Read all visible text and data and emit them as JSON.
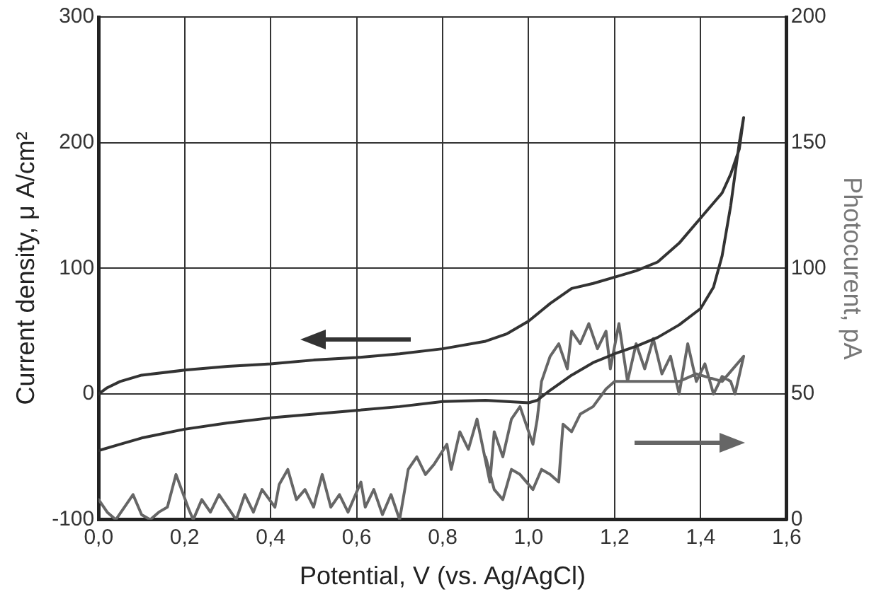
{
  "chart_data": {
    "type": "line",
    "xlabel": "Potential, V (vs. Ag/AgCl)",
    "ylabel": "Current density, μ A/cm²",
    "y2label": "Photocurent, pA",
    "xlim": [
      0,
      1.6
    ],
    "xticks": [
      {
        "value": 0,
        "label": "0,0"
      },
      {
        "value": 0.2,
        "label": "0,2"
      },
      {
        "value": 0.4,
        "label": "0,4"
      },
      {
        "value": 0.6,
        "label": "0,6"
      },
      {
        "value": 0.8,
        "label": "0,8"
      },
      {
        "value": 1,
        "label": "1,0"
      },
      {
        "value": 1.2,
        "label": "1,2"
      },
      {
        "value": 1.4,
        "label": "1,4"
      },
      {
        "value": 1.6,
        "label": "1,6"
      }
    ],
    "ylim": [
      -100,
      300
    ],
    "yticks": [
      -100,
      0,
      100,
      200,
      300
    ],
    "y2lim": [
      0,
      200
    ],
    "y2ticks": [
      0,
      50,
      100,
      150,
      200
    ],
    "grid": true,
    "legend": false,
    "marker": "none",
    "line_style": "solid",
    "series": [
      {
        "color": "#333333",
        "x": [
          0,
          0.05,
          0.1,
          0.2,
          0.3,
          0.4,
          0.5,
          0.6,
          0.7,
          0.8,
          0.9,
          1.0,
          1.02,
          1.05,
          1.1,
          1.15,
          1.2,
          1.25,
          1.3,
          1.35,
          1.4,
          1.43,
          1.45,
          1.47,
          1.49,
          1.5,
          1.49,
          1.47,
          1.45,
          1.4,
          1.35,
          1.3,
          1.25,
          1.2,
          1.15,
          1.1,
          1.05,
          1.0,
          0.95,
          0.9,
          0.8,
          0.7,
          0.6,
          0.5,
          0.4,
          0.3,
          0.2,
          0.1,
          0.05,
          0.02,
          0
        ],
        "values": [
          -45,
          -40,
          -35,
          -28,
          -23,
          -19,
          -16,
          -13,
          -10,
          -6,
          -5,
          -7,
          -5,
          3,
          15,
          25,
          32,
          38,
          45,
          55,
          68,
          85,
          110,
          150,
          200,
          220,
          195,
          175,
          160,
          140,
          120,
          105,
          98,
          93,
          88,
          84,
          72,
          58,
          48,
          42,
          36,
          32,
          29,
          27,
          24,
          22,
          19,
          15,
          10,
          5,
          0
        ]
      },
      {
        "color": "#666666",
        "axis": "y2",
        "x": [
          0,
          0.02,
          0.04,
          0.06,
          0.08,
          0.1,
          0.12,
          0.14,
          0.16,
          0.18,
          0.21,
          0.22,
          0.24,
          0.26,
          0.28,
          0.3,
          0.32,
          0.34,
          0.36,
          0.38,
          0.41,
          0.42,
          0.44,
          0.46,
          0.48,
          0.5,
          0.52,
          0.54,
          0.56,
          0.58,
          0.61,
          0.62,
          0.64,
          0.66,
          0.68,
          0.7,
          0.72,
          0.74,
          0.76,
          0.78,
          0.81,
          0.82,
          0.84,
          0.86,
          0.88,
          0.91,
          0.92,
          0.94,
          0.96,
          0.98,
          1.01,
          1.02,
          1.03,
          1.05,
          1.07,
          1.09,
          1.1,
          1.12,
          1.14,
          1.16,
          1.18,
          1.19,
          1.21,
          1.23,
          1.25,
          1.27,
          1.29,
          1.31,
          1.33,
          1.35,
          1.37,
          1.39,
          1.41,
          1.43,
          1.45,
          1.47,
          1.48,
          1.5,
          1.45,
          1.39,
          1.35,
          1.3,
          1.25,
          1.2,
          1.18,
          1.15,
          1.12,
          1.1,
          1.08,
          1.07,
          1.05,
          1.03,
          1.01,
          0.98,
          0.96,
          0.94,
          0.92,
          0.9
        ],
        "values": [
          8,
          3,
          0,
          5,
          10,
          2,
          0,
          3,
          5,
          18,
          4,
          0,
          8,
          3,
          10,
          5,
          0,
          10,
          3,
          12,
          5,
          14,
          20,
          8,
          12,
          5,
          18,
          5,
          10,
          3,
          15,
          5,
          12,
          2,
          10,
          0,
          20,
          25,
          18,
          22,
          30,
          20,
          35,
          28,
          40,
          15,
          35,
          25,
          40,
          45,
          30,
          40,
          55,
          65,
          70,
          60,
          75,
          70,
          78,
          68,
          75,
          60,
          78,
          55,
          70,
          60,
          72,
          58,
          65,
          50,
          70,
          55,
          62,
          50,
          57,
          55,
          50,
          65,
          55,
          58,
          55,
          55,
          55,
          55,
          52,
          45,
          42,
          35,
          38,
          15,
          18,
          20,
          12,
          18,
          20,
          8,
          12,
          25
        ]
      }
    ]
  }
}
